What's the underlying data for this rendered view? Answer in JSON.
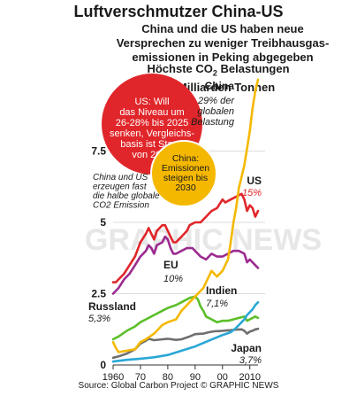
{
  "title": "Luftverschmutzer China-US",
  "subtitle": [
    "China und die US haben neue",
    "Versprechen zu weniger Treibhausgas-",
    "emissionen in Peking abgegeben"
  ],
  "ylabel": {
    "prefix": "Höchste CO",
    "sub": "2",
    "suffix": " Belastungen",
    "unit": "10 Milliarden Tonnen"
  },
  "source": "Source: Global Carbon Project  © GRAPHIC NEWS",
  "watermark": "GRAPHIC NEWS",
  "colors": {
    "China": "#f5b800",
    "US": "#e0262a",
    "EU": "#9b2a8f",
    "Indien": "#2aa7d6",
    "Russland": "#5bbf2a",
    "Japan": "#6e6e6e",
    "callout_red": "#e0262a",
    "callout_yellow": "#f5b800"
  },
  "callouts": {
    "us": [
      "US: Will",
      "das Niveau um",
      "26-28% bis 2025",
      "senken, Vergleichs-",
      "basis ist Stand",
      "von 2005"
    ],
    "china": [
      "China:",
      "Emissionen",
      "steigen bis",
      "2030"
    ],
    "note": [
      "China und US",
      "erzeugen fast",
      "die halbe globale",
      "CO2 Emission"
    ]
  },
  "labels": {
    "China": {
      "name": "China",
      "share": [
        "29% der",
        "globalen",
        "Belastung"
      ]
    },
    "US": {
      "name": "US",
      "share": [
        "15%"
      ]
    },
    "EU": {
      "name": "EU",
      "share": [
        "10%"
      ]
    },
    "Indien": {
      "name": "Indien",
      "share": [
        "7,1%"
      ]
    },
    "Russland": {
      "name": "Russland",
      "share": [
        "5,3%"
      ]
    },
    "Japan": {
      "name": "Japan",
      "share": [
        "3,7%"
      ]
    }
  },
  "chart_data": {
    "type": "line",
    "ylim": [
      0,
      10
    ],
    "xlim": [
      1960,
      2013
    ],
    "yticks": [
      {
        "v": 0,
        "label": "0"
      },
      {
        "v": 2.5,
        "label": "2.5"
      },
      {
        "v": 5,
        "label": "5"
      },
      {
        "v": 7.5,
        "label": "7.5"
      }
    ],
    "xticks": [
      {
        "v": 1960,
        "label": "1960"
      },
      {
        "v": 1970,
        "label": "70"
      },
      {
        "v": 1980,
        "label": "80"
      },
      {
        "v": 1990,
        "label": "90"
      },
      {
        "v": 2000,
        "label": "00"
      },
      {
        "v": 2010,
        "label": "2010"
      }
    ],
    "series": [
      {
        "name": "China",
        "points": [
          [
            1960,
            0.8
          ],
          [
            1961,
            0.6
          ],
          [
            1962,
            0.45
          ],
          [
            1965,
            0.5
          ],
          [
            1968,
            0.55
          ],
          [
            1970,
            0.8
          ],
          [
            1972,
            0.9
          ],
          [
            1975,
            1.1
          ],
          [
            1978,
            1.4
          ],
          [
            1980,
            1.5
          ],
          [
            1983,
            1.6
          ],
          [
            1985,
            1.9
          ],
          [
            1988,
            2.2
          ],
          [
            1990,
            2.4
          ],
          [
            1993,
            2.7
          ],
          [
            1996,
            3.3
          ],
          [
            1998,
            3.1
          ],
          [
            2000,
            3.3
          ],
          [
            2002,
            3.7
          ],
          [
            2003,
            4.3
          ],
          [
            2004,
            5.0
          ],
          [
            2005,
            5.5
          ],
          [
            2006,
            6.2
          ],
          [
            2007,
            6.6
          ],
          [
            2008,
            7.0
          ],
          [
            2009,
            7.6
          ],
          [
            2010,
            8.2
          ],
          [
            2011,
            9.0
          ],
          [
            2012,
            9.6
          ],
          [
            2013,
            10.0
          ]
        ]
      },
      {
        "name": "US",
        "points": [
          [
            1960,
            2.9
          ],
          [
            1961,
            2.9
          ],
          [
            1962,
            3.0
          ],
          [
            1964,
            3.2
          ],
          [
            1966,
            3.5
          ],
          [
            1968,
            3.8
          ],
          [
            1970,
            4.3
          ],
          [
            1972,
            4.6
          ],
          [
            1973,
            4.8
          ],
          [
            1974,
            4.6
          ],
          [
            1975,
            4.4
          ],
          [
            1976,
            4.7
          ],
          [
            1977,
            4.8
          ],
          [
            1978,
            4.9
          ],
          [
            1979,
            4.9
          ],
          [
            1980,
            4.7
          ],
          [
            1981,
            4.5
          ],
          [
            1982,
            4.3
          ],
          [
            1983,
            4.3
          ],
          [
            1985,
            4.5
          ],
          [
            1987,
            4.7
          ],
          [
            1988,
            4.9
          ],
          [
            1990,
            5.0
          ],
          [
            1992,
            5.0
          ],
          [
            1994,
            5.2
          ],
          [
            1996,
            5.4
          ],
          [
            1998,
            5.5
          ],
          [
            2000,
            5.8
          ],
          [
            2001,
            5.7
          ],
          [
            2003,
            5.8
          ],
          [
            2005,
            5.9
          ],
          [
            2007,
            6.0
          ],
          [
            2008,
            5.8
          ],
          [
            2009,
            5.4
          ],
          [
            2010,
            5.6
          ],
          [
            2011,
            5.5
          ],
          [
            2012,
            5.2
          ],
          [
            2013,
            5.4
          ]
        ]
      },
      {
        "name": "EU",
        "points": [
          [
            1960,
            2.5
          ],
          [
            1962,
            2.7
          ],
          [
            1964,
            3.0
          ],
          [
            1966,
            3.2
          ],
          [
            1968,
            3.5
          ],
          [
            1970,
            3.8
          ],
          [
            1972,
            4.0
          ],
          [
            1973,
            4.2
          ],
          [
            1974,
            4.1
          ],
          [
            1975,
            3.9
          ],
          [
            1976,
            4.2
          ],
          [
            1978,
            4.3
          ],
          [
            1979,
            4.5
          ],
          [
            1980,
            4.4
          ],
          [
            1981,
            4.1
          ],
          [
            1982,
            3.9
          ],
          [
            1983,
            3.9
          ],
          [
            1985,
            4.0
          ],
          [
            1987,
            4.1
          ],
          [
            1989,
            4.1
          ],
          [
            1990,
            4.0
          ],
          [
            1992,
            3.8
          ],
          [
            1994,
            3.7
          ],
          [
            1996,
            3.9
          ],
          [
            1998,
            3.8
          ],
          [
            2000,
            3.8
          ],
          [
            2002,
            3.9
          ],
          [
            2004,
            4.0
          ],
          [
            2006,
            4.0
          ],
          [
            2008,
            3.9
          ],
          [
            2009,
            3.6
          ],
          [
            2010,
            3.7
          ],
          [
            2011,
            3.6
          ],
          [
            2012,
            3.5
          ],
          [
            2013,
            3.4
          ]
        ]
      },
      {
        "name": "Indien",
        "points": [
          [
            1960,
            0.12
          ],
          [
            1965,
            0.18
          ],
          [
            1970,
            0.22
          ],
          [
            1975,
            0.27
          ],
          [
            1980,
            0.35
          ],
          [
            1985,
            0.5
          ],
          [
            1990,
            0.65
          ],
          [
            1995,
            0.85
          ],
          [
            2000,
            1.05
          ],
          [
            2003,
            1.15
          ],
          [
            2005,
            1.3
          ],
          [
            2007,
            1.5
          ],
          [
            2008,
            1.6
          ],
          [
            2009,
            1.75
          ],
          [
            2010,
            1.85
          ],
          [
            2011,
            1.95
          ],
          [
            2012,
            2.1
          ],
          [
            2013,
            2.2
          ]
        ]
      },
      {
        "name": "Russland",
        "points": [
          [
            1960,
            0.9
          ],
          [
            1962,
            1.0
          ],
          [
            1965,
            1.2
          ],
          [
            1968,
            1.35
          ],
          [
            1970,
            1.5
          ],
          [
            1972,
            1.6
          ],
          [
            1975,
            1.75
          ],
          [
            1978,
            1.9
          ],
          [
            1980,
            2.0
          ],
          [
            1983,
            2.1
          ],
          [
            1985,
            2.2
          ],
          [
            1988,
            2.35
          ],
          [
            1990,
            2.4
          ],
          [
            1991,
            2.3
          ],
          [
            1992,
            2.05
          ],
          [
            1993,
            1.9
          ],
          [
            1994,
            1.7
          ],
          [
            1996,
            1.6
          ],
          [
            1998,
            1.5
          ],
          [
            2000,
            1.55
          ],
          [
            2002,
            1.55
          ],
          [
            2004,
            1.6
          ],
          [
            2006,
            1.65
          ],
          [
            2008,
            1.7
          ],
          [
            2009,
            1.55
          ],
          [
            2010,
            1.6
          ],
          [
            2012,
            1.7
          ],
          [
            2013,
            1.65
          ]
        ]
      },
      {
        "name": "Japan",
        "points": [
          [
            1960,
            0.25
          ],
          [
            1962,
            0.3
          ],
          [
            1965,
            0.4
          ],
          [
            1968,
            0.55
          ],
          [
            1970,
            0.75
          ],
          [
            1972,
            0.85
          ],
          [
            1973,
            0.92
          ],
          [
            1975,
            0.87
          ],
          [
            1978,
            0.9
          ],
          [
            1980,
            0.92
          ],
          [
            1983,
            0.88
          ],
          [
            1985,
            0.9
          ],
          [
            1988,
            1.0
          ],
          [
            1990,
            1.08
          ],
          [
            1993,
            1.1
          ],
          [
            1995,
            1.15
          ],
          [
            1997,
            1.18
          ],
          [
            2000,
            1.2
          ],
          [
            2003,
            1.22
          ],
          [
            2005,
            1.24
          ],
          [
            2007,
            1.25
          ],
          [
            2008,
            1.2
          ],
          [
            2009,
            1.1
          ],
          [
            2010,
            1.17
          ],
          [
            2011,
            1.2
          ],
          [
            2012,
            1.25
          ],
          [
            2013,
            1.27
          ]
        ]
      }
    ]
  }
}
